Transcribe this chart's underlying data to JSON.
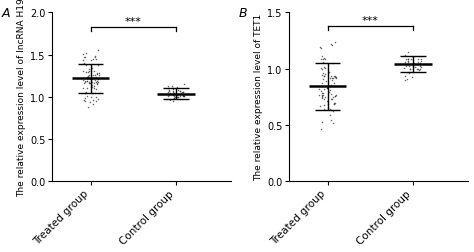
{
  "panel_A": {
    "label": "A",
    "ylabel": "The relative expression level of lncRNA H19",
    "ylim": [
      0.0,
      2.0
    ],
    "yticks": [
      0.0,
      0.5,
      1.0,
      1.5,
      2.0
    ],
    "groups": [
      "Treated group",
      "Control group"
    ],
    "group_means": [
      1.22,
      1.03
    ],
    "group_sd_upper": [
      0.17,
      0.08
    ],
    "group_sd_lower": [
      0.17,
      0.06
    ],
    "treated_points_mean": 1.22,
    "treated_points_std": 0.15,
    "control_points_mean": 1.03,
    "control_points_std": 0.055,
    "n_treated": 80,
    "n_control": 45,
    "sig_text": "***",
    "sig_line_y": 1.83,
    "sig_tick_drop": 0.05,
    "bracket_x1": 1,
    "bracket_x2": 2
  },
  "panel_B": {
    "label": "B",
    "ylabel": "The relative expression level of TET1",
    "ylim": [
      0.0,
      1.5
    ],
    "yticks": [
      0.0,
      0.5,
      1.0,
      1.5
    ],
    "groups": [
      "Treated group",
      "Control group"
    ],
    "group_means": [
      0.85,
      1.04
    ],
    "group_sd_upper": [
      0.2,
      0.07
    ],
    "group_sd_lower": [
      0.22,
      0.07
    ],
    "treated_points_mean": 0.83,
    "treated_points_std": 0.19,
    "control_points_mean": 1.04,
    "control_points_std": 0.06,
    "n_treated": 80,
    "n_control": 40,
    "sig_text": "***",
    "sig_line_y": 1.38,
    "sig_tick_drop": 0.04,
    "bracket_x1": 1,
    "bracket_x2": 2
  },
  "dot_color": "#333333",
  "dot_size": 1.2,
  "dot_alpha": 0.75,
  "mean_line_color": "#000000",
  "mean_linewidth": 1.8,
  "mean_halfwidth": 0.22,
  "errorbar_linewidth": 1.0,
  "errorbar_cap_halfwidth": 0.15,
  "jitter_scale": 0.1,
  "panel_label_fontsize": 9,
  "ylabel_fontsize": 6.5,
  "tick_fontsize": 7,
  "xlabel_fontsize": 7.5,
  "sig_fontsize": 8,
  "background_color": "#ffffff",
  "x_positions": [
    1,
    2
  ],
  "xlim": [
    0.55,
    2.65
  ]
}
